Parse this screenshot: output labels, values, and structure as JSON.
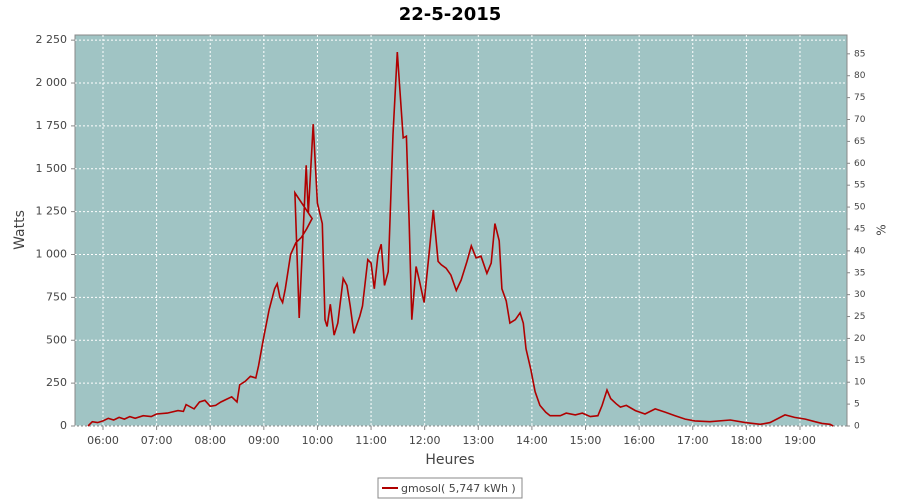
{
  "chart_data": {
    "type": "line",
    "title": "22-5-2015",
    "x_label": "Heures",
    "y_label": "Watts",
    "y2_label": "%",
    "x": [
      5.72,
      5.8,
      5.9,
      6.0,
      6.1,
      6.2,
      6.3,
      6.4,
      6.5,
      6.6,
      6.75,
      6.9,
      7.0,
      7.2,
      7.4,
      7.5,
      7.55,
      7.7,
      7.8,
      7.9,
      8.0,
      8.1,
      8.2,
      8.3,
      8.4,
      8.5,
      8.55,
      8.65,
      8.75,
      8.85,
      8.9,
      9.0,
      9.1,
      9.2,
      9.25,
      9.3,
      9.35,
      9.4,
      9.5,
      9.6,
      9.7,
      9.8,
      9.9,
      9.58,
      9.66,
      9.79,
      9.83,
      9.92,
      10.0,
      10.09,
      10.14,
      10.18,
      10.24,
      10.31,
      10.38,
      10.48,
      10.55,
      10.61,
      10.68,
      10.79,
      10.84,
      10.94,
      11.0,
      11.06,
      11.13,
      11.19,
      11.25,
      11.32,
      11.41,
      11.49,
      11.54,
      11.6,
      11.66,
      11.71,
      11.76,
      11.84,
      11.9,
      11.99,
      12.08,
      12.16,
      12.25,
      12.31,
      12.4,
      12.49,
      12.59,
      12.68,
      12.79,
      12.87,
      12.96,
      13.05,
      13.16,
      13.24,
      13.31,
      13.39,
      13.44,
      13.52,
      13.59,
      13.69,
      13.78,
      13.84,
      13.89,
      13.98,
      14.06,
      14.15,
      14.26,
      14.34,
      14.53,
      14.64,
      14.81,
      14.94,
      15.09,
      15.23,
      15.31,
      15.4,
      15.47,
      15.57,
      15.65,
      15.76,
      15.93,
      16.11,
      16.3,
      16.49,
      16.67,
      16.86,
      17.04,
      17.32,
      17.7,
      17.98,
      18.26,
      18.44,
      18.72,
      18.9,
      19.1,
      19.28,
      19.41,
      19.56,
      19.62
    ],
    "series": [
      {
        "name": "gmosol( 5,747 kWh )",
        "color": "#b00000",
        "values": [
          0,
          25,
          20,
          30,
          45,
          35,
          50,
          40,
          55,
          45,
          60,
          55,
          70,
          75,
          90,
          85,
          125,
          100,
          140,
          150,
          115,
          120,
          140,
          155,
          170,
          140,
          240,
          260,
          290,
          280,
          350,
          520,
          680,
          800,
          830,
          750,
          720,
          800,
          1000,
          1070,
          1100,
          1150,
          1210,
          1360,
          630,
          1520,
          1240,
          1760,
          1300,
          1180,
          620,
          580,
          710,
          530,
          600,
          860,
          820,
          700,
          540,
          640,
          700,
          970,
          950,
          800,
          1000,
          1060,
          820,
          900,
          1700,
          2180,
          1950,
          1680,
          1690,
          1200,
          620,
          930,
          850,
          720,
          1000,
          1260,
          960,
          940,
          920,
          880,
          790,
          850,
          960,
          1050,
          980,
          990,
          890,
          950,
          1180,
          1080,
          800,
          730,
          600,
          620,
          660,
          600,
          450,
          330,
          200,
          120,
          80,
          60,
          60,
          75,
          65,
          75,
          55,
          60,
          120,
          210,
          160,
          130,
          110,
          120,
          90,
          70,
          100,
          80,
          60,
          40,
          30,
          25,
          35,
          20,
          10,
          20,
          65,
          50,
          40,
          25,
          15,
          10,
          0
        ]
      }
    ],
    "xlim": [
      5.478,
      19.877
    ],
    "xticks": [
      {
        "value": 6,
        "label": "06:00"
      },
      {
        "value": 7,
        "label": "07:00"
      },
      {
        "value": 8,
        "label": "08:00"
      },
      {
        "value": 9,
        "label": "09:00"
      },
      {
        "value": 10,
        "label": "10:00"
      },
      {
        "value": 11,
        "label": "11:00"
      },
      {
        "value": 12,
        "label": "12:00"
      },
      {
        "value": 13,
        "label": "13:00"
      },
      {
        "value": 14,
        "label": "14:00"
      },
      {
        "value": 15,
        "label": "15:00"
      },
      {
        "value": 16,
        "label": "16:00"
      },
      {
        "value": 17,
        "label": "17:00"
      },
      {
        "value": 18,
        "label": "18:00"
      },
      {
        "value": 19,
        "label": "19:00"
      }
    ],
    "ylim": [
      0,
      2280
    ],
    "yticks": [
      0,
      250,
      500,
      750,
      {
        "value": 1000,
        "label": "1 000"
      },
      {
        "value": 1250,
        "label": "1 250"
      },
      {
        "value": 1500,
        "label": "1 500"
      },
      {
        "value": 1750,
        "label": "1 750"
      },
      {
        "value": 2000,
        "label": "2 000"
      },
      {
        "value": 2250,
        "label": "2 250"
      }
    ],
    "y2lim": [
      0,
      89.3
    ],
    "y2ticks": [
      0,
      5,
      10,
      15,
      20,
      25,
      30,
      35,
      40,
      45,
      50,
      55,
      60,
      65,
      70,
      75,
      80,
      85
    ],
    "grid": true,
    "legend": "bottom",
    "background": "#a0c4c4"
  }
}
